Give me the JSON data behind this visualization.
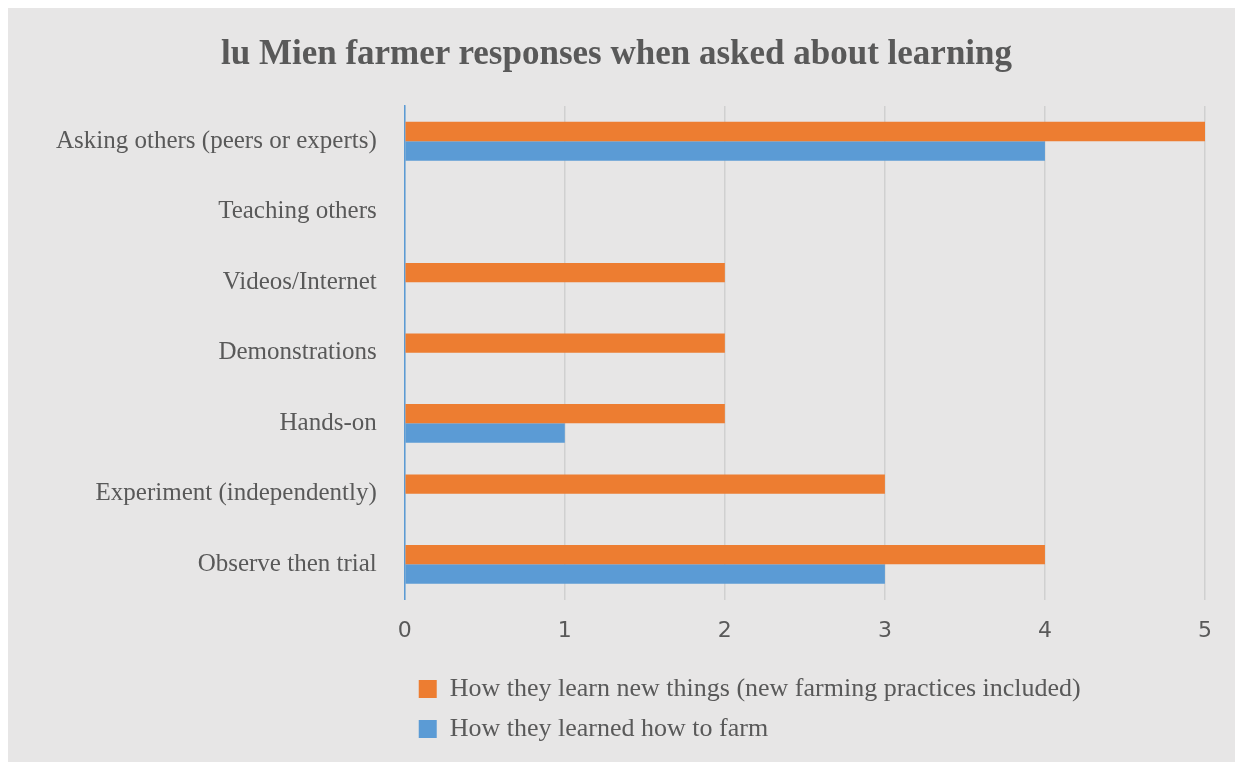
{
  "chart_data": {
    "type": "bar",
    "orientation": "horizontal",
    "title": "lu Mien farmer responses when asked about learning",
    "categories": [
      "Asking others (peers or experts)",
      "Teaching others",
      "Videos/Internet",
      "Demonstrations",
      "Hands-on",
      "Experiment (independently)",
      "Observe then trial"
    ],
    "series": [
      {
        "name": "How they learn new things (new farming practices included)",
        "color": "#ed7d31",
        "values": [
          5,
          0,
          2,
          2,
          2,
          3,
          4
        ]
      },
      {
        "name": "How they learned how to farm",
        "color": "#5b9bd5",
        "values": [
          4,
          0,
          0,
          0,
          1,
          0,
          3
        ]
      }
    ],
    "xlim": [
      0,
      5
    ],
    "xticks": [
      0,
      1,
      2,
      3,
      4,
      5
    ],
    "grid": "x",
    "legend": "bottom"
  }
}
